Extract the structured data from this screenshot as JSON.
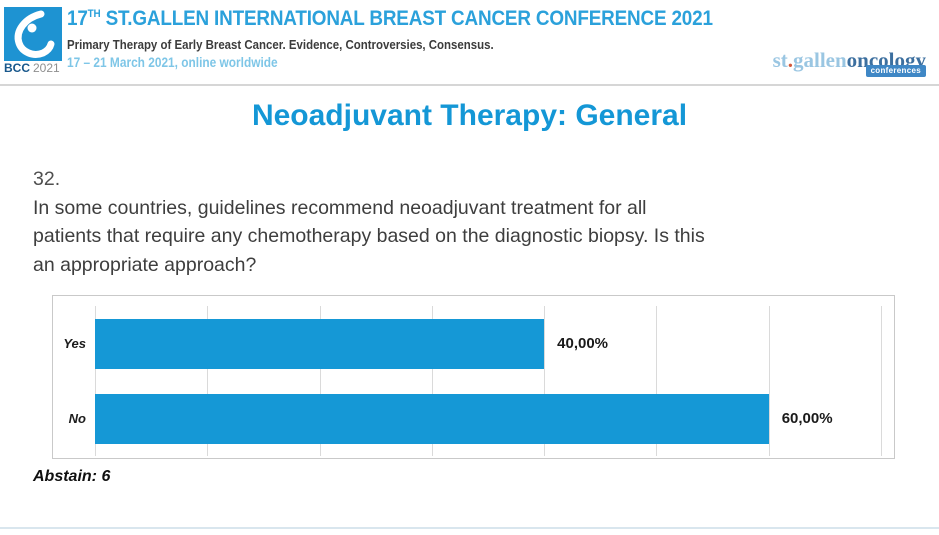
{
  "header": {
    "logo_square": {
      "label_bold": "BCC",
      "label_year": "2021"
    },
    "title": {
      "num": "17",
      "sup": "TH",
      "rest": " ST.GALLEN INTERNATIONAL BREAST CANCER CONFERENCE 2021"
    },
    "subtitle": "Primary Therapy of Early Breast Cancer. Evidence, Controversies, Consensus.",
    "dates": "17 – 21 March 2021, online worldwide",
    "brand": {
      "st": "st",
      "dot": ".",
      "gallen": "gallen",
      "oncology": "oncology",
      "chip": "conferences"
    }
  },
  "slide": {
    "title": "Neoadjuvant Therapy: General",
    "question_number": "32.",
    "question_lines": [
      "In some countries, guidelines recommend neoadjuvant treatment for all",
      "patients that require any chemotherapy based on the diagnostic biopsy. Is this",
      "an appropriate approach?"
    ],
    "abstain_label": "Abstain: 6"
  },
  "chart_data": {
    "type": "bar",
    "orientation": "horizontal",
    "title": "",
    "categories": [
      "Yes",
      "No"
    ],
    "values": [
      40,
      60
    ],
    "value_labels": [
      "40,00%",
      "60,00%"
    ],
    "abstain_count": 6,
    "xlim": [
      0,
      70
    ],
    "gridline_step": 10,
    "grid": true,
    "legend": false,
    "bar_color": "#1598D6"
  },
  "colors": {
    "header_title_blue": "#2BA1DB",
    "dates_blue": "#7EC6E7",
    "slide_title_blue": "#1497D6",
    "bar_blue": "#1598D6",
    "brand_light_blue": "#9AC6E2",
    "brand_dark_blue": "#3C6F9F",
    "brand_dot_orange": "#D4593B",
    "chip_blue": "#3F87C5"
  }
}
